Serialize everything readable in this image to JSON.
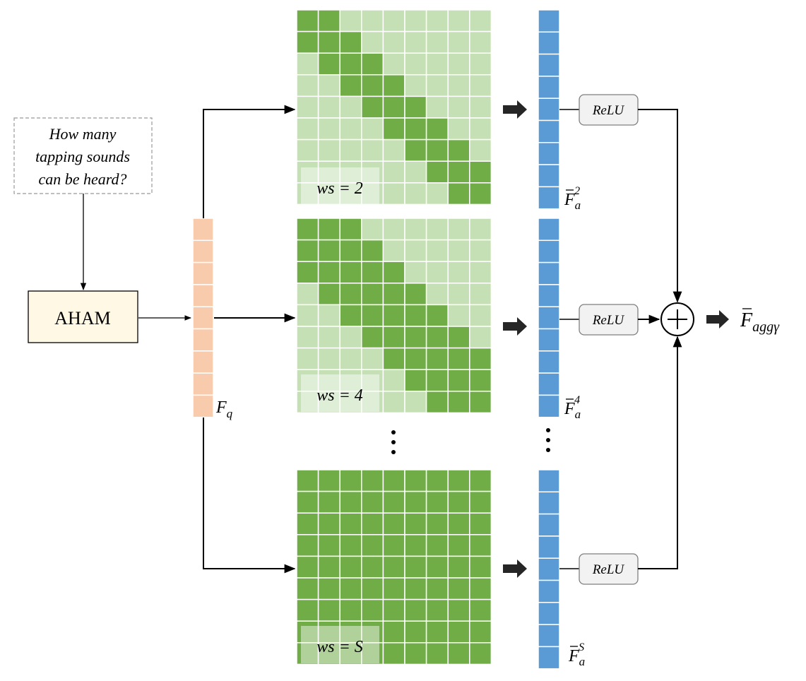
{
  "question": {
    "line1": "How many",
    "line2": "tapping sounds",
    "line3": "can be heard?"
  },
  "aham_label": "AHAM",
  "fq_label": {
    "base": "F",
    "sub": "q"
  },
  "windows": [
    {
      "ws_label": "ws = 2",
      "feat_sup": "2",
      "relu": "ReLU"
    },
    {
      "ws_label": "ws = 4",
      "feat_sup": "4",
      "relu": "ReLU"
    },
    {
      "ws_label": "ws = S",
      "feat_sup": "S",
      "relu": "ReLU"
    }
  ],
  "feat_base": "F",
  "feat_sub": "a",
  "output": {
    "base": "F",
    "sub": "aggγ"
  },
  "sum_symbol": "+",
  "colors": {
    "dark_green": "#70ad47",
    "light_green": "#c5e0b4",
    "blue": "#5b9bd5",
    "orange": "#f8cbad",
    "aham_fill": "#fff8e5",
    "relu_fill": "#f2f2f2"
  }
}
